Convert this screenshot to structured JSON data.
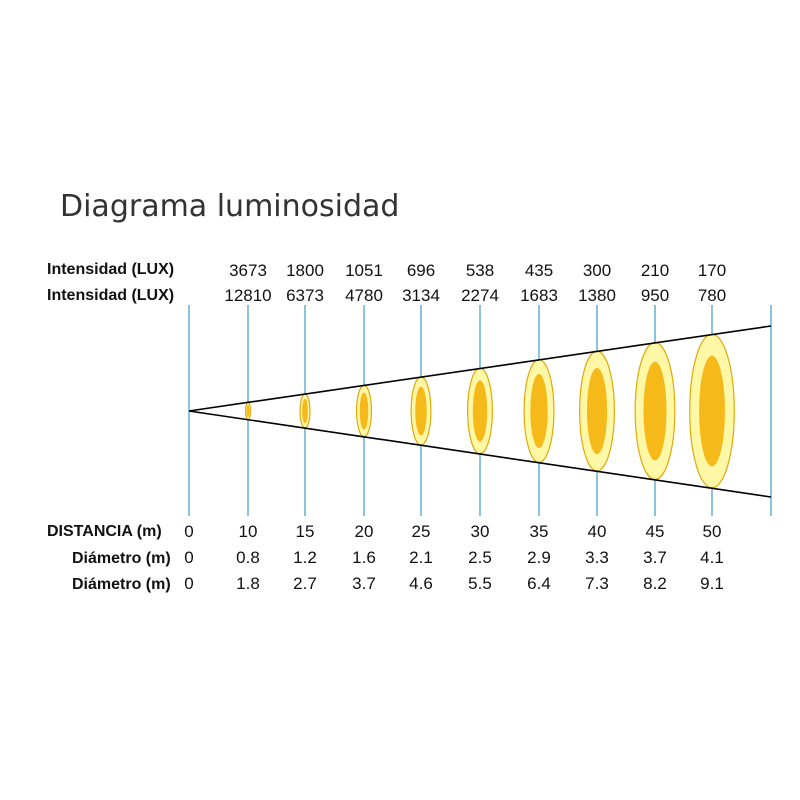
{
  "title": "Diagrama luminosidad",
  "rows": {
    "intensity1": {
      "label": "Intensidad (LUX)",
      "values": [
        "3673",
        "1800",
        "1051",
        "696",
        "538",
        "435",
        "300",
        "210",
        "170"
      ]
    },
    "intensity2": {
      "label": "Intensidad (LUX)",
      "values": [
        "12810",
        "6373",
        "4780",
        "3134",
        "2274",
        "1683",
        "1380",
        "950",
        "780"
      ]
    },
    "distance": {
      "label": "DISTANCIA (m)",
      "values": [
        "0",
        "10",
        "15",
        "20",
        "25",
        "30",
        "35",
        "40",
        "45",
        "50"
      ]
    },
    "diameter1": {
      "label": "Diámetro (m)",
      "values": [
        "0",
        "0.8",
        "1.2",
        "1.6",
        "2.1",
        "2.5",
        "2.9",
        "3.3",
        "3.7",
        "4.1"
      ]
    },
    "diameter2": {
      "label": "Diámetro (m)",
      "values": [
        "0",
        "1.8",
        "2.7",
        "3.7",
        "4.6",
        "5.5",
        "6.4",
        "7.3",
        "8.2",
        "9.1"
      ]
    }
  },
  "colors": {
    "guide_line": "#3a9cc4",
    "outer_beam": "#fdf7a6",
    "inner_beam": "#f6b91a",
    "beam_outline": "#e0a90a",
    "cone": "#000000"
  }
}
